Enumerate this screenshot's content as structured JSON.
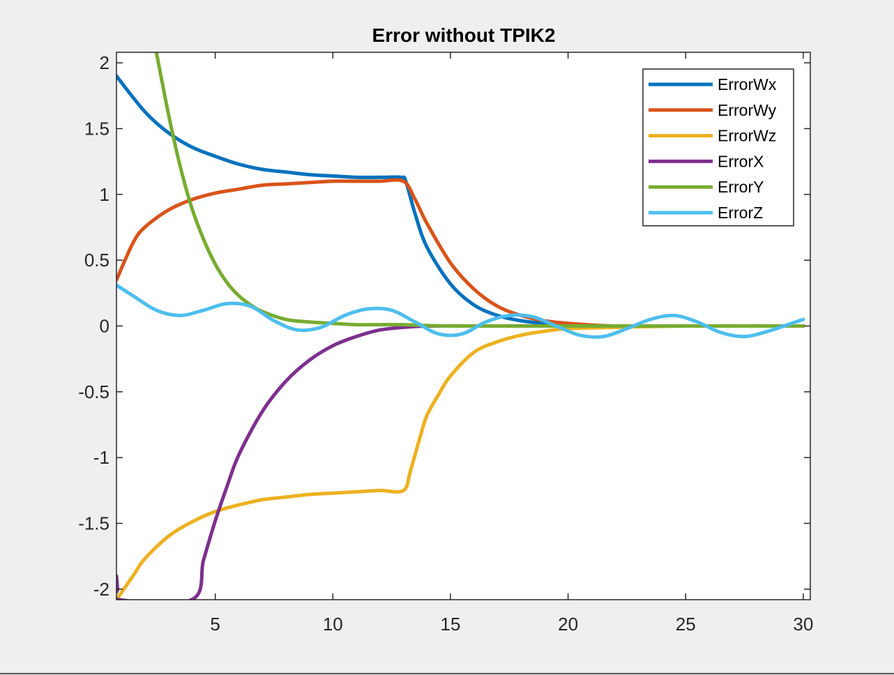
{
  "chart_data": {
    "type": "line",
    "title": "Error without TPIK2",
    "xlabel": "",
    "ylabel": "",
    "xlim": [
      0.8,
      30.3
    ],
    "ylim": [
      -2.08,
      2.08
    ],
    "xticks": [
      5,
      10,
      15,
      20,
      25,
      30
    ],
    "yticks": [
      2,
      1.5,
      1,
      0.5,
      0,
      -0.5,
      -1,
      -1.5,
      -2
    ],
    "xtick_labels": [
      "5",
      "10",
      "15",
      "20",
      "25",
      "30"
    ],
    "ytick_labels": [
      "2",
      "1.5",
      "1",
      "0.5",
      "0",
      "-0.5",
      "-1",
      "-1.5",
      "-2"
    ],
    "grid": false,
    "legend_position": "top-right",
    "series": [
      {
        "name": "ErrorWx",
        "color": "#0072bd",
        "x": [
          0.8,
          2,
          3,
          4,
          5,
          6,
          7,
          8,
          9,
          10,
          11,
          12,
          12.9,
          13.1,
          13.5,
          14,
          15,
          16,
          17,
          18,
          19,
          20,
          22,
          25,
          30
        ],
        "y": [
          1.9,
          1.63,
          1.47,
          1.36,
          1.29,
          1.23,
          1.19,
          1.17,
          1.15,
          1.14,
          1.13,
          1.13,
          1.13,
          1.1,
          0.85,
          0.6,
          0.32,
          0.16,
          0.08,
          0.04,
          0.02,
          0.01,
          0,
          0,
          0
        ]
      },
      {
        "name": "ErrorWy",
        "color": "#d95319",
        "x": [
          0.8,
          1.5,
          2,
          3,
          4,
          5,
          6,
          7,
          8,
          9,
          10,
          11,
          12,
          13,
          13.5,
          14,
          15,
          16,
          17,
          18,
          19,
          20,
          22,
          25,
          30
        ],
        "y": [
          0.35,
          0.63,
          0.75,
          0.88,
          0.96,
          1.01,
          1.04,
          1.07,
          1.08,
          1.09,
          1.1,
          1.1,
          1.1,
          1.1,
          0.96,
          0.78,
          0.48,
          0.28,
          0.15,
          0.08,
          0.04,
          0.02,
          0,
          0,
          0
        ]
      },
      {
        "name": "ErrorWz",
        "color": "#edb120",
        "x": [
          0.8,
          1.5,
          2,
          3,
          4,
          5,
          6,
          7,
          8,
          9,
          10,
          11,
          12,
          13,
          13.3,
          13.7,
          14,
          14.5,
          15,
          16,
          17,
          18,
          19,
          20,
          22,
          25,
          30
        ],
        "y": [
          -2.08,
          -1.9,
          -1.77,
          -1.6,
          -1.49,
          -1.41,
          -1.36,
          -1.32,
          -1.3,
          -1.28,
          -1.27,
          -1.26,
          -1.25,
          -1.25,
          -1.1,
          -0.85,
          -0.68,
          -0.52,
          -0.38,
          -0.2,
          -0.12,
          -0.07,
          -0.04,
          -0.02,
          -0.01,
          0,
          0
        ]
      },
      {
        "name": "ErrorX",
        "color": "#7e2f8e",
        "x": [
          0.8,
          0.85,
          0.9,
          4,
          4.5,
          5,
          5.5,
          6,
          7,
          8,
          9,
          10,
          11,
          12,
          13,
          14,
          16,
          20,
          25,
          30
        ],
        "y": [
          -1.9,
          -2.0,
          -2.08,
          -2.08,
          -1.78,
          -1.48,
          -1.22,
          -0.98,
          -0.65,
          -0.42,
          -0.26,
          -0.15,
          -0.08,
          -0.03,
          -0.01,
          0,
          0,
          0,
          0,
          0
        ]
      },
      {
        "name": "ErrorY",
        "color": "#77ac30",
        "x": [
          2.5,
          3,
          3.5,
          4,
          4.5,
          5,
          5.5,
          6,
          6.5,
          7,
          8,
          9,
          10,
          11,
          12,
          13,
          15,
          20,
          25,
          30
        ],
        "y": [
          2.08,
          1.62,
          1.22,
          0.9,
          0.66,
          0.47,
          0.33,
          0.23,
          0.16,
          0.11,
          0.05,
          0.03,
          0.02,
          0.01,
          0.01,
          0.01,
          0,
          0,
          0,
          0
        ]
      },
      {
        "name": "ErrorZ",
        "color": "#4dbeee",
        "x": [
          0.8,
          1.5,
          2.5,
          3.5,
          4.5,
          5.5,
          6.5,
          7.5,
          8.5,
          9.5,
          10.5,
          11.5,
          12.5,
          13.5,
          14.5,
          15.5,
          16.5,
          17.5,
          18.5,
          19.5,
          20.5,
          21.5,
          22.5,
          23.5,
          24.5,
          25.5,
          26.5,
          27.5,
          28.5,
          29.5,
          30
        ],
        "y": [
          0.31,
          0.23,
          0.12,
          0.08,
          0.12,
          0.17,
          0.15,
          0.04,
          -0.03,
          -0.01,
          0.08,
          0.13,
          0.12,
          0.03,
          -0.06,
          -0.06,
          0.03,
          0.08,
          0.07,
          0,
          -0.07,
          -0.08,
          -0.02,
          0.05,
          0.08,
          0.03,
          -0.05,
          -0.08,
          -0.04,
          0.02,
          0.05
        ]
      }
    ]
  }
}
